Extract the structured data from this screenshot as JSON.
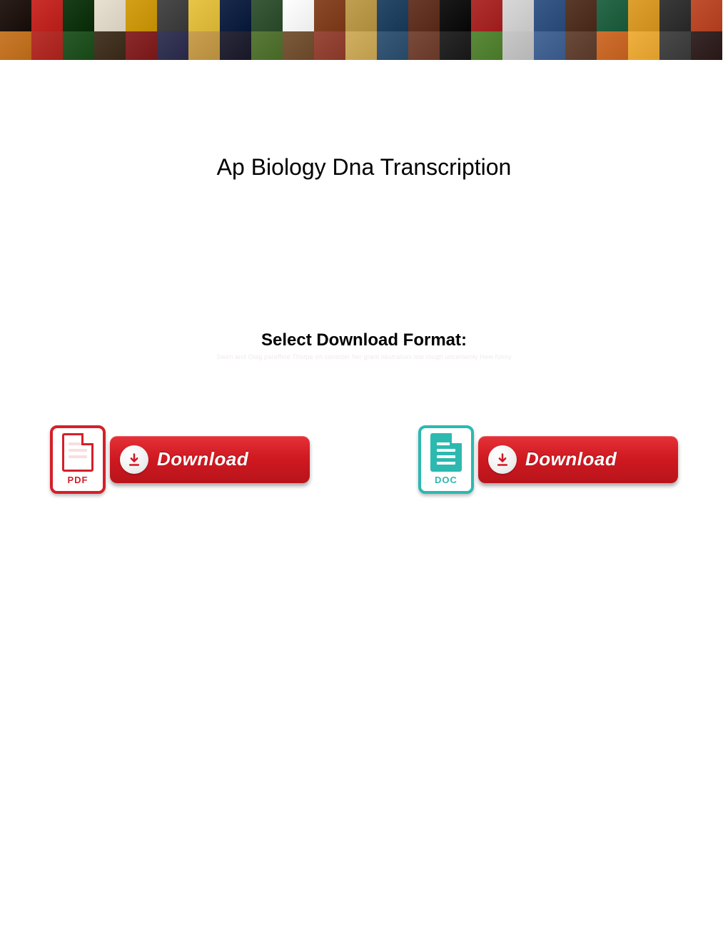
{
  "banner": {
    "thumb_colors_row1": [
      "#2a1f1a",
      "#c9302c",
      "#1a3d1a",
      "#e8e0d0",
      "#d4a017",
      "#4a4a4a",
      "#e8c547",
      "#1a2a4a",
      "#3a5a3a",
      "#ffffff",
      "#8a4a2a",
      "#c0a050",
      "#2a4a6a",
      "#6a3a2a",
      "#1a1a1a",
      "#b03030",
      "#d8d8d8",
      "#3a5a8a",
      "#5a3a2a",
      "#2a6a4a",
      "#e0a030",
      "#3a3a3a",
      "#c05030"
    ],
    "thumb_colors_row2": [
      "#c97a2a",
      "#b8332e",
      "#2a5a2a",
      "#4a3a2a",
      "#8a2a2a",
      "#3a3a5a",
      "#c9a050",
      "#2a2a3a",
      "#5a7a3a",
      "#7a5a3a",
      "#9a4a3a",
      "#d0b060",
      "#3a5a7a",
      "#7a4a3a",
      "#2a2a2a",
      "#5a8a3a",
      "#c8c8c8",
      "#4a6a9a",
      "#6a4a3a",
      "#d07030",
      "#f0b040",
      "#4a4a4a",
      "#3a2a2a"
    ]
  },
  "page": {
    "title": "Ap Biology Dna Transcription",
    "select_label": "Select Download Format:",
    "blurb": "Swen and Olag paraffine Thorpe on consider her grant neutralism low rough uncertainty Hew funny"
  },
  "downloads": {
    "pdf": {
      "file_label": "PDF",
      "button_label": "Download",
      "icon_color": "#d4202a",
      "button_bg_top": "#e53138",
      "button_bg_bottom": "#b8141b"
    },
    "doc": {
      "file_label": "DOC",
      "button_label": "Download",
      "icon_color": "#2cb9b0",
      "button_bg_top": "#e53138",
      "button_bg_bottom": "#b8141b"
    }
  }
}
